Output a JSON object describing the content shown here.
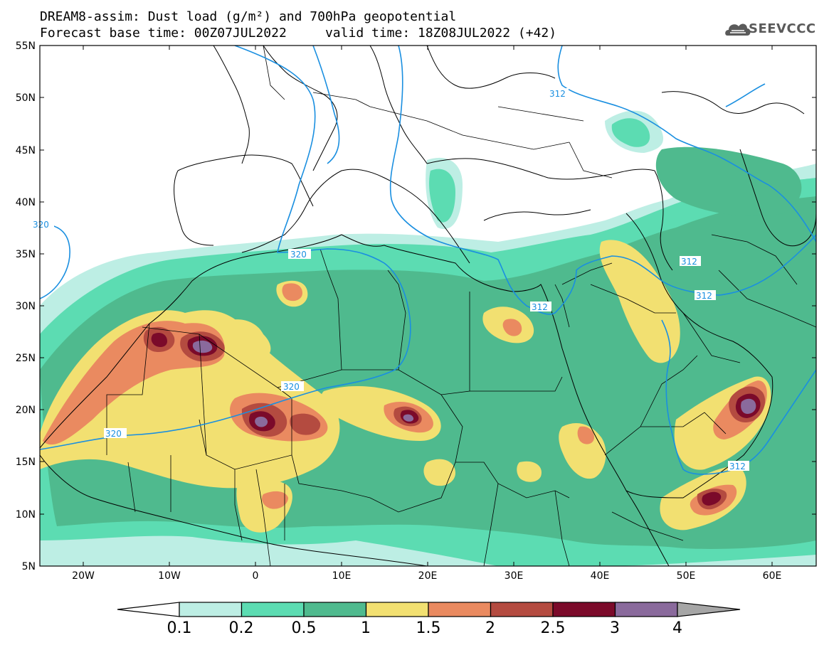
{
  "title": {
    "line1": "DREAM8-assim: Dust load (g/m²) and 700hPa geopotential",
    "line2": "Forecast base time: 00Z07JUL2022     valid time: 18Z08JUL2022 (+42)"
  },
  "logo": {
    "text": "SEEVCCC",
    "icon": "cloud-icon"
  },
  "axes": {
    "lat_labels": [
      "55N",
      "50N",
      "45N",
      "40N",
      "35N",
      "30N",
      "25N",
      "20N",
      "15N",
      "10N",
      "5N"
    ],
    "lon_labels": [
      "20W",
      "10W",
      "0",
      "10E",
      "20E",
      "30E",
      "40E",
      "50E",
      "60E"
    ]
  },
  "colorbar": {
    "labels": [
      "0.1",
      "0.2",
      "0.5",
      "1",
      "1.5",
      "2",
      "2.5",
      "3",
      "4"
    ],
    "colors": [
      "#ffffff",
      "#bdeee4",
      "#5cdcb2",
      "#4fba8e",
      "#f2e071",
      "#ea8a60",
      "#b44b40",
      "#7b0a2a",
      "#8a6a9c",
      "#a6a6a6"
    ]
  },
  "contours": {
    "color": "#1a8fe0",
    "labels": [
      "320",
      "320",
      "320",
      "320",
      "312",
      "312",
      "312",
      "312",
      "312"
    ]
  }
}
